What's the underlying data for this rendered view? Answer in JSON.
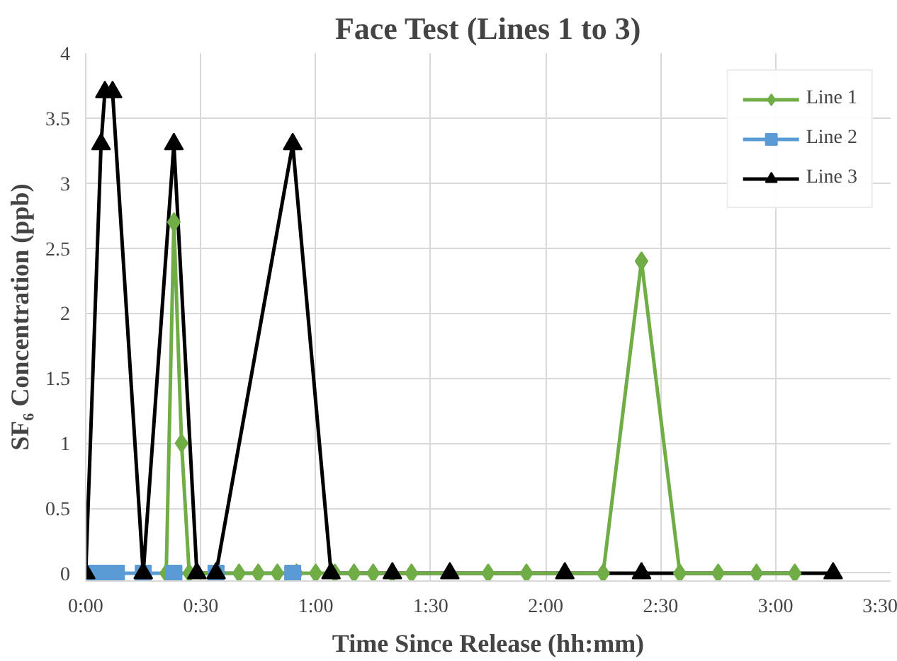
{
  "chart_data": {
    "type": "line",
    "title": "Face Test (Lines 1 to 3)",
    "xlabel": "Time Since Release (hh:mm)",
    "ylabel": "SF₆ Concentration (ppb)",
    "xlim": [
      0,
      210
    ],
    "xticks": [
      {
        "value": 0,
        "label": "0:00"
      },
      {
        "value": 30,
        "label": "0:30"
      },
      {
        "value": 60,
        "label": "1:00"
      },
      {
        "value": 90,
        "label": "1:30"
      },
      {
        "value": 120,
        "label": "2:00"
      },
      {
        "value": 150,
        "label": "2:30"
      },
      {
        "value": 180,
        "label": "3:00"
      },
      {
        "value": 210,
        "label": "3:30"
      }
    ],
    "ylim": [
      0,
      4
    ],
    "yticks": [
      0,
      0.5,
      1,
      1.5,
      2,
      2.5,
      3,
      3.5,
      4
    ],
    "grid": true,
    "legend": "top right",
    "line_style": "solid",
    "series": [
      {
        "name": "Line 1",
        "color": "#70ad47",
        "marker": "diamond",
        "x": [
          21,
          23,
          25,
          27,
          40,
          45,
          50,
          55,
          60,
          65,
          70,
          75,
          80,
          85,
          105,
          115,
          135,
          145,
          155,
          165,
          175,
          185
        ],
        "values": [
          0,
          2.7,
          1,
          0,
          0,
          0,
          0,
          0,
          0,
          0,
          0,
          0,
          0,
          0,
          0,
          0,
          0,
          2.4,
          0,
          0,
          0,
          0
        ]
      },
      {
        "name": "Line 2",
        "color": "#5b9bd5",
        "marker": "square",
        "x": [
          0,
          4,
          8,
          15,
          23,
          34,
          54
        ],
        "values": [
          0,
          0,
          0,
          0,
          0,
          0,
          0
        ]
      },
      {
        "name": "Line 3",
        "color": "#000000",
        "marker": "triangle",
        "x": [
          0,
          4,
          5,
          7,
          15,
          23,
          29,
          34,
          54,
          64,
          80,
          95,
          125,
          145,
          195
        ],
        "values": [
          0,
          3.3,
          3.7,
          3.7,
          0,
          3.3,
          0,
          0,
          3.3,
          0,
          0,
          0,
          0,
          0,
          0
        ]
      }
    ]
  }
}
